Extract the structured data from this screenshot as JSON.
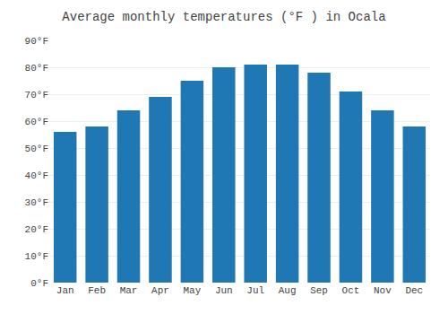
{
  "chart_data": {
    "type": "bar",
    "title": "Average monthly temperatures (°F ) in Ocala",
    "categories": [
      "Jan",
      "Feb",
      "Mar",
      "Apr",
      "May",
      "Jun",
      "Jul",
      "Aug",
      "Sep",
      "Oct",
      "Nov",
      "Dec"
    ],
    "values": [
      56,
      58,
      64,
      69,
      75,
      80,
      81,
      81,
      78,
      71,
      64,
      58
    ],
    "ylim": [
      0,
      90
    ],
    "yticks": [
      {
        "value": 0,
        "label": "0°F"
      },
      {
        "value": 10,
        "label": "10°F"
      },
      {
        "value": 20,
        "label": "20°F"
      },
      {
        "value": 30,
        "label": "30°F"
      },
      {
        "value": 40,
        "label": "40°F"
      },
      {
        "value": 50,
        "label": "50°F"
      },
      {
        "value": 60,
        "label": "60°F"
      },
      {
        "value": 70,
        "label": "70°F"
      },
      {
        "value": 80,
        "label": "80°F"
      },
      {
        "value": 90,
        "label": "90°F"
      }
    ],
    "grid": true
  }
}
